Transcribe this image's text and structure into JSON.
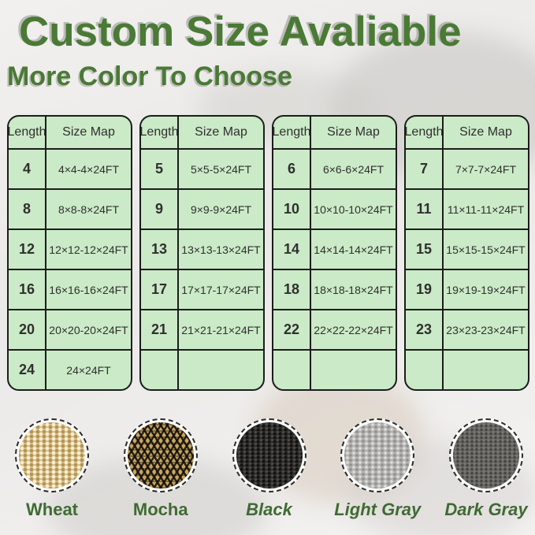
{
  "header": {
    "title": "Custom Size Avaliable",
    "subtitle": "More Color To Choose"
  },
  "tables": [
    {
      "headers": [
        "Length",
        "Size Map"
      ],
      "rows": [
        [
          "4",
          "4×4-4×24FT"
        ],
        [
          "8",
          "8×8-8×24FT"
        ],
        [
          "12",
          "12×12-12×24FT"
        ],
        [
          "16",
          "16×16-16×24FT"
        ],
        [
          "20",
          "20×20-20×24FT"
        ],
        [
          "24",
          "24×24FT"
        ]
      ]
    },
    {
      "headers": [
        "Length",
        "Size Map"
      ],
      "rows": [
        [
          "5",
          "5×5-5×24FT"
        ],
        [
          "9",
          "9×9-9×24FT"
        ],
        [
          "13",
          "13×13-13×24FT"
        ],
        [
          "17",
          "17×17-17×24FT"
        ],
        [
          "21",
          "21×21-21×24FT"
        ],
        [
          "",
          ""
        ]
      ]
    },
    {
      "headers": [
        "Length",
        "Size Map"
      ],
      "rows": [
        [
          "6",
          "6×6-6×24FT"
        ],
        [
          "10",
          "10×10-10×24FT"
        ],
        [
          "14",
          "14×14-14×24FT"
        ],
        [
          "18",
          "18×18-18×24FT"
        ],
        [
          "22",
          "22×22-22×24FT"
        ],
        [
          "",
          ""
        ]
      ]
    },
    {
      "headers": [
        "Length",
        "Size Map"
      ],
      "rows": [
        [
          "7",
          "7×7-7×24FT"
        ],
        [
          "11",
          "11×11-11×24FT"
        ],
        [
          "15",
          "15×15-15×24FT"
        ],
        [
          "19",
          "19×19-19×24FT"
        ],
        [
          "23",
          "23×23-23×24FT"
        ],
        [
          "",
          ""
        ]
      ]
    }
  ],
  "colors": {
    "swatches": [
      {
        "label": "Wheat",
        "base": "#d9bf88"
      },
      {
        "label": "Mocha",
        "base": "#c9a55e"
      },
      {
        "label": "Black",
        "base": "#2c2b29"
      },
      {
        "label": "Light Gray",
        "base": "#b4b3b1"
      },
      {
        "label": "Dark Gray",
        "base": "#676561"
      }
    ]
  },
  "theme": {
    "title_green": "#4a7a36",
    "label_green": "#3f6b33",
    "cell_green": "#cbeac7",
    "table_border": "#1c1c1c"
  }
}
